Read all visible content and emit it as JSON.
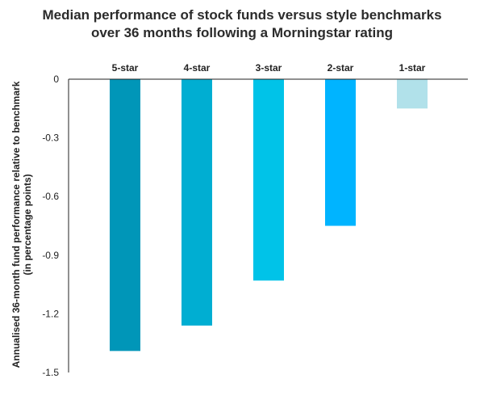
{
  "chart_data": {
    "type": "bar",
    "title_lines": [
      "Median performance of stock funds versus style benchmarks",
      "over 36 months following a Morningstar rating"
    ],
    "ylabel_lines": [
      "Annualised 36-month fund performance relative to benchmark",
      "(in percentage points)"
    ],
    "xlabel": "",
    "categories": [
      "5-star",
      "4-star",
      "3-star",
      "2-star",
      "1-star"
    ],
    "values": [
      -1.39,
      -1.26,
      -1.03,
      -0.75,
      -0.15
    ],
    "colors": [
      "#0096b8",
      "#00aed2",
      "#00c3e8",
      "#00b4ff",
      "#b1e1ea"
    ],
    "ylim": [
      -1.5,
      0
    ],
    "yticks": [
      "0",
      "-0.3",
      "-0.6",
      "-0.9",
      "-1.2",
      "-1.5"
    ],
    "ytick_values": [
      0,
      -0.3,
      -0.6,
      -0.9,
      -1.2,
      -1.5
    ],
    "category_labels_position": "top",
    "grid": false,
    "legend": "none"
  }
}
